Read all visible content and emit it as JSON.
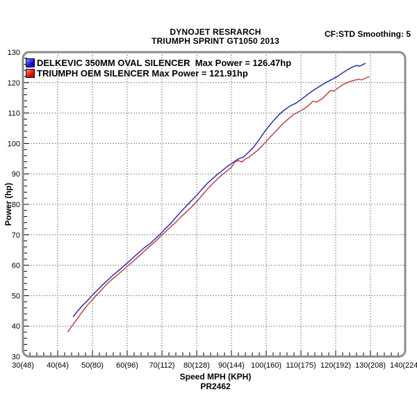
{
  "chart_data": {
    "type": "line",
    "title": "DYNOJET RESRARCH",
    "subtitle": "TRIUMPH SPRINT GT1050 2013",
    "corner_note": "CF:STD Smoothing: 5",
    "footer_note": "PR2462",
    "xlabel": "Speed MPH (KPH)",
    "ylabel": "Power (hp)",
    "xlim": [
      30,
      140
    ],
    "ylim": [
      30,
      130
    ],
    "grid": "dotted major gridlines every 10 units, minor ticks every 2 units",
    "legend_position": "top-left inside plot",
    "frame_color": "#8c8c8c",
    "grid_color": "#4a4a4a",
    "x_ticks": [
      {
        "value": 30,
        "label": "30(48)"
      },
      {
        "value": 40,
        "label": "40(64)"
      },
      {
        "value": 50,
        "label": "50(80)"
      },
      {
        "value": 60,
        "label": "60(96)"
      },
      {
        "value": 70,
        "label": "70(112)"
      },
      {
        "value": 80,
        "label": "80(128)"
      },
      {
        "value": 90,
        "label": "90(144)"
      },
      {
        "value": 100,
        "label": "100(160)"
      },
      {
        "value": 110,
        "label": "110(175)"
      },
      {
        "value": 120,
        "label": "120(192)"
      },
      {
        "value": 130,
        "label": "130(208)"
      },
      {
        "value": 140,
        "label": "140(224)"
      }
    ],
    "y_ticks": [
      30,
      40,
      50,
      60,
      70,
      80,
      90,
      100,
      110,
      120,
      130
    ],
    "series": [
      {
        "name": "DELKEVIC 350MM OVAL SILENCER",
        "legend_label": "DELKEVIC 350MM OVAL SILENCER  Max Power = 126.47hp",
        "max_power_hp": 126.47,
        "color": "#3939a8",
        "swatch_color": "#0000dd",
        "points": [
          [
            44.5,
            43.2
          ],
          [
            45.5,
            44.6
          ],
          [
            47,
            46.6
          ],
          [
            48.5,
            48.3
          ],
          [
            50,
            50.2
          ],
          [
            51.5,
            51.9
          ],
          [
            53,
            53.6
          ],
          [
            54.5,
            55.2
          ],
          [
            56,
            56.8
          ],
          [
            57.5,
            58.2
          ],
          [
            59,
            59.7
          ],
          [
            60.5,
            61.2
          ],
          [
            62,
            62.8
          ],
          [
            63.5,
            64.3
          ],
          [
            65,
            65.8
          ],
          [
            66.5,
            67.0
          ],
          [
            68,
            68.6
          ],
          [
            69.5,
            70.2
          ],
          [
            71,
            72.0
          ],
          [
            72.5,
            73.7
          ],
          [
            74,
            75.7
          ],
          [
            75.5,
            77.6
          ],
          [
            77,
            79.4
          ],
          [
            78.5,
            81.2
          ],
          [
            80,
            83.0
          ],
          [
            81.5,
            84.9
          ],
          [
            83,
            86.8
          ],
          [
            84.5,
            88.4
          ],
          [
            86,
            89.9
          ],
          [
            87.5,
            91.2
          ],
          [
            89,
            92.6
          ],
          [
            90.5,
            93.8
          ],
          [
            92,
            94.9
          ],
          [
            93.5,
            95.6
          ],
          [
            95,
            97.2
          ],
          [
            96.5,
            99.0
          ],
          [
            98,
            101.3
          ],
          [
            99.5,
            103.8
          ],
          [
            101,
            106.0
          ],
          [
            102.5,
            108.0
          ],
          [
            104,
            109.8
          ],
          [
            105.5,
            111.2
          ],
          [
            107,
            112.4
          ],
          [
            108.5,
            113.2
          ],
          [
            110,
            114.4
          ],
          [
            111.5,
            115.7
          ],
          [
            113,
            117.0
          ],
          [
            114.5,
            118.1
          ],
          [
            116,
            119.2
          ],
          [
            117.5,
            120.2
          ],
          [
            119,
            121.1
          ],
          [
            120.5,
            122.0
          ],
          [
            122,
            123.2
          ],
          [
            123.5,
            124.3
          ],
          [
            125,
            125.2
          ],
          [
            126,
            125.6
          ],
          [
            127,
            125.4
          ],
          [
            127.8,
            125.9
          ],
          [
            128.5,
            126.3
          ]
        ]
      },
      {
        "name": "TRIUMPH OEM SILENCER",
        "legend_label": "TRIUMPH OEM SILENCER Max Power = 121.91hp",
        "max_power_hp": 121.91,
        "color": "#bf4f4f",
        "swatch_color": "#dd0000",
        "points": [
          [
            43,
            38.2
          ],
          [
            44,
            39.9
          ],
          [
            45.5,
            42.2
          ],
          [
            47,
            44.6
          ],
          [
            48.5,
            46.8
          ],
          [
            50,
            48.7
          ],
          [
            51.5,
            50.6
          ],
          [
            53,
            52.4
          ],
          [
            54.5,
            54.2
          ],
          [
            56,
            55.7
          ],
          [
            57.5,
            57.1
          ],
          [
            59,
            58.6
          ],
          [
            60.5,
            60.1
          ],
          [
            62,
            61.6
          ],
          [
            63.5,
            63.1
          ],
          [
            65,
            64.7
          ],
          [
            66.5,
            66.2
          ],
          [
            68,
            67.7
          ],
          [
            69.5,
            69.4
          ],
          [
            71,
            71.0
          ],
          [
            72.5,
            72.6
          ],
          [
            74,
            74.1
          ],
          [
            75.5,
            75.9
          ],
          [
            77,
            77.5
          ],
          [
            78.5,
            79.1
          ],
          [
            80,
            80.9
          ],
          [
            81.5,
            82.9
          ],
          [
            83,
            84.9
          ],
          [
            84.5,
            86.7
          ],
          [
            86,
            88.3
          ],
          [
            87.5,
            89.9
          ],
          [
            89,
            91.2
          ],
          [
            90,
            92.2
          ],
          [
            91,
            93.9
          ],
          [
            92,
            94.4
          ],
          [
            93,
            93.9
          ],
          [
            94,
            94.9
          ],
          [
            95,
            95.4
          ],
          [
            96,
            96.4
          ],
          [
            97.5,
            97.7
          ],
          [
            99,
            99.4
          ],
          [
            100.5,
            101.3
          ],
          [
            102,
            103.1
          ],
          [
            103.5,
            104.9
          ],
          [
            105,
            106.7
          ],
          [
            106.5,
            108.2
          ],
          [
            108,
            109.6
          ],
          [
            109.5,
            110.5
          ],
          [
            111,
            111.4
          ],
          [
            112.5,
            112.8
          ],
          [
            113.5,
            113.9
          ],
          [
            114.5,
            113.6
          ],
          [
            116,
            114.6
          ],
          [
            117.5,
            116.2
          ],
          [
            118.5,
            117.4
          ],
          [
            119.5,
            117.2
          ],
          [
            121,
            118.5
          ],
          [
            122.5,
            119.6
          ],
          [
            124,
            120.3
          ],
          [
            125.5,
            120.8
          ],
          [
            126.5,
            121.1
          ],
          [
            127.5,
            120.9
          ],
          [
            128.5,
            121.4
          ],
          [
            129.5,
            121.9
          ]
        ]
      }
    ]
  }
}
